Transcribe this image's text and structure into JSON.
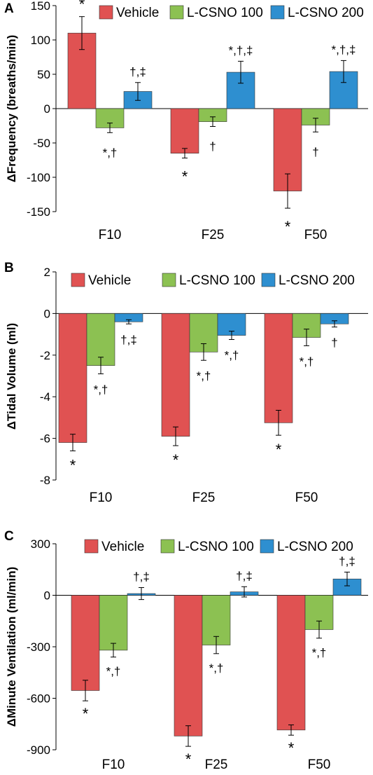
{
  "colors": {
    "vehicle": "#E05252",
    "lcsno100": "#8CC152",
    "lcsno200": "#2E8FD0",
    "axis": "#000000"
  },
  "chart_data": [
    {
      "panel": "A",
      "type": "bar",
      "ylabel": "ΔFrequency (breaths/min)",
      "ylim": [
        -150,
        150
      ],
      "yticks": [
        150,
        100,
        50,
        0,
        -50,
        -100,
        -150
      ],
      "categories": [
        "F10",
        "F25",
        "F50"
      ],
      "legend_position": "top",
      "series": [
        {
          "name": "Vehicle",
          "values": [
            110,
            -65,
            -120
          ],
          "errors": [
            24,
            7,
            25
          ],
          "annotations": [
            "*",
            "*",
            "*"
          ]
        },
        {
          "name": "L-CSNO 100",
          "values": [
            -28,
            -19,
            -24
          ],
          "errors": [
            7,
            7,
            10
          ],
          "annotations": [
            "*,†",
            "†",
            "†"
          ]
        },
        {
          "name": "L-CSNO 200",
          "values": [
            25,
            53,
            54
          ],
          "errors": [
            13,
            16,
            16
          ],
          "annotations": [
            "†,‡",
            "*,†,‡",
            "*,†,‡"
          ]
        }
      ]
    },
    {
      "panel": "B",
      "type": "bar",
      "ylabel": "ΔTidal Volume (ml)",
      "ylim": [
        -8,
        2
      ],
      "yticks": [
        2,
        0,
        -2,
        -4,
        -6,
        -8
      ],
      "categories": [
        "F10",
        "F25",
        "F50"
      ],
      "legend_position": "top",
      "series": [
        {
          "name": "Vehicle",
          "values": [
            -6.2,
            -5.9,
            -5.25
          ],
          "errors": [
            0.4,
            0.45,
            0.6
          ],
          "annotations": [
            "*",
            "*",
            "*"
          ]
        },
        {
          "name": "L-CSNO 100",
          "values": [
            -2.5,
            -1.85,
            -1.15
          ],
          "errors": [
            0.4,
            0.4,
            0.4
          ],
          "annotations": [
            "*,†",
            "*,†",
            "*,†"
          ]
        },
        {
          "name": "L-CSNO 200",
          "values": [
            -0.4,
            -1.05,
            -0.5
          ],
          "errors": [
            0.1,
            0.2,
            0.15
          ],
          "annotations": [
            "†,‡",
            "*,†",
            "†"
          ]
        }
      ]
    },
    {
      "panel": "C",
      "type": "bar",
      "ylabel": "ΔMinute Ventilation (ml/min)",
      "ylim": [
        -900,
        300
      ],
      "yticks": [
        300,
        0,
        -300,
        -600,
        -900
      ],
      "categories": [
        "F10",
        "F25",
        "F50"
      ],
      "legend_position": "top",
      "series": [
        {
          "name": "Vehicle",
          "values": [
            -555,
            -820,
            -785
          ],
          "errors": [
            60,
            60,
            30
          ],
          "annotations": [
            "*",
            "*",
            "*"
          ]
        },
        {
          "name": "L-CSNO 100",
          "values": [
            -320,
            -290,
            -200
          ],
          "errors": [
            40,
            50,
            50
          ],
          "annotations": [
            "*,†",
            "*,†",
            "*,†"
          ]
        },
        {
          "name": "L-CSNO 200",
          "values": [
            10,
            20,
            95
          ],
          "errors": [
            35,
            30,
            40
          ],
          "annotations": [
            "†,‡",
            "†,‡",
            "†,‡"
          ]
        }
      ]
    }
  ]
}
